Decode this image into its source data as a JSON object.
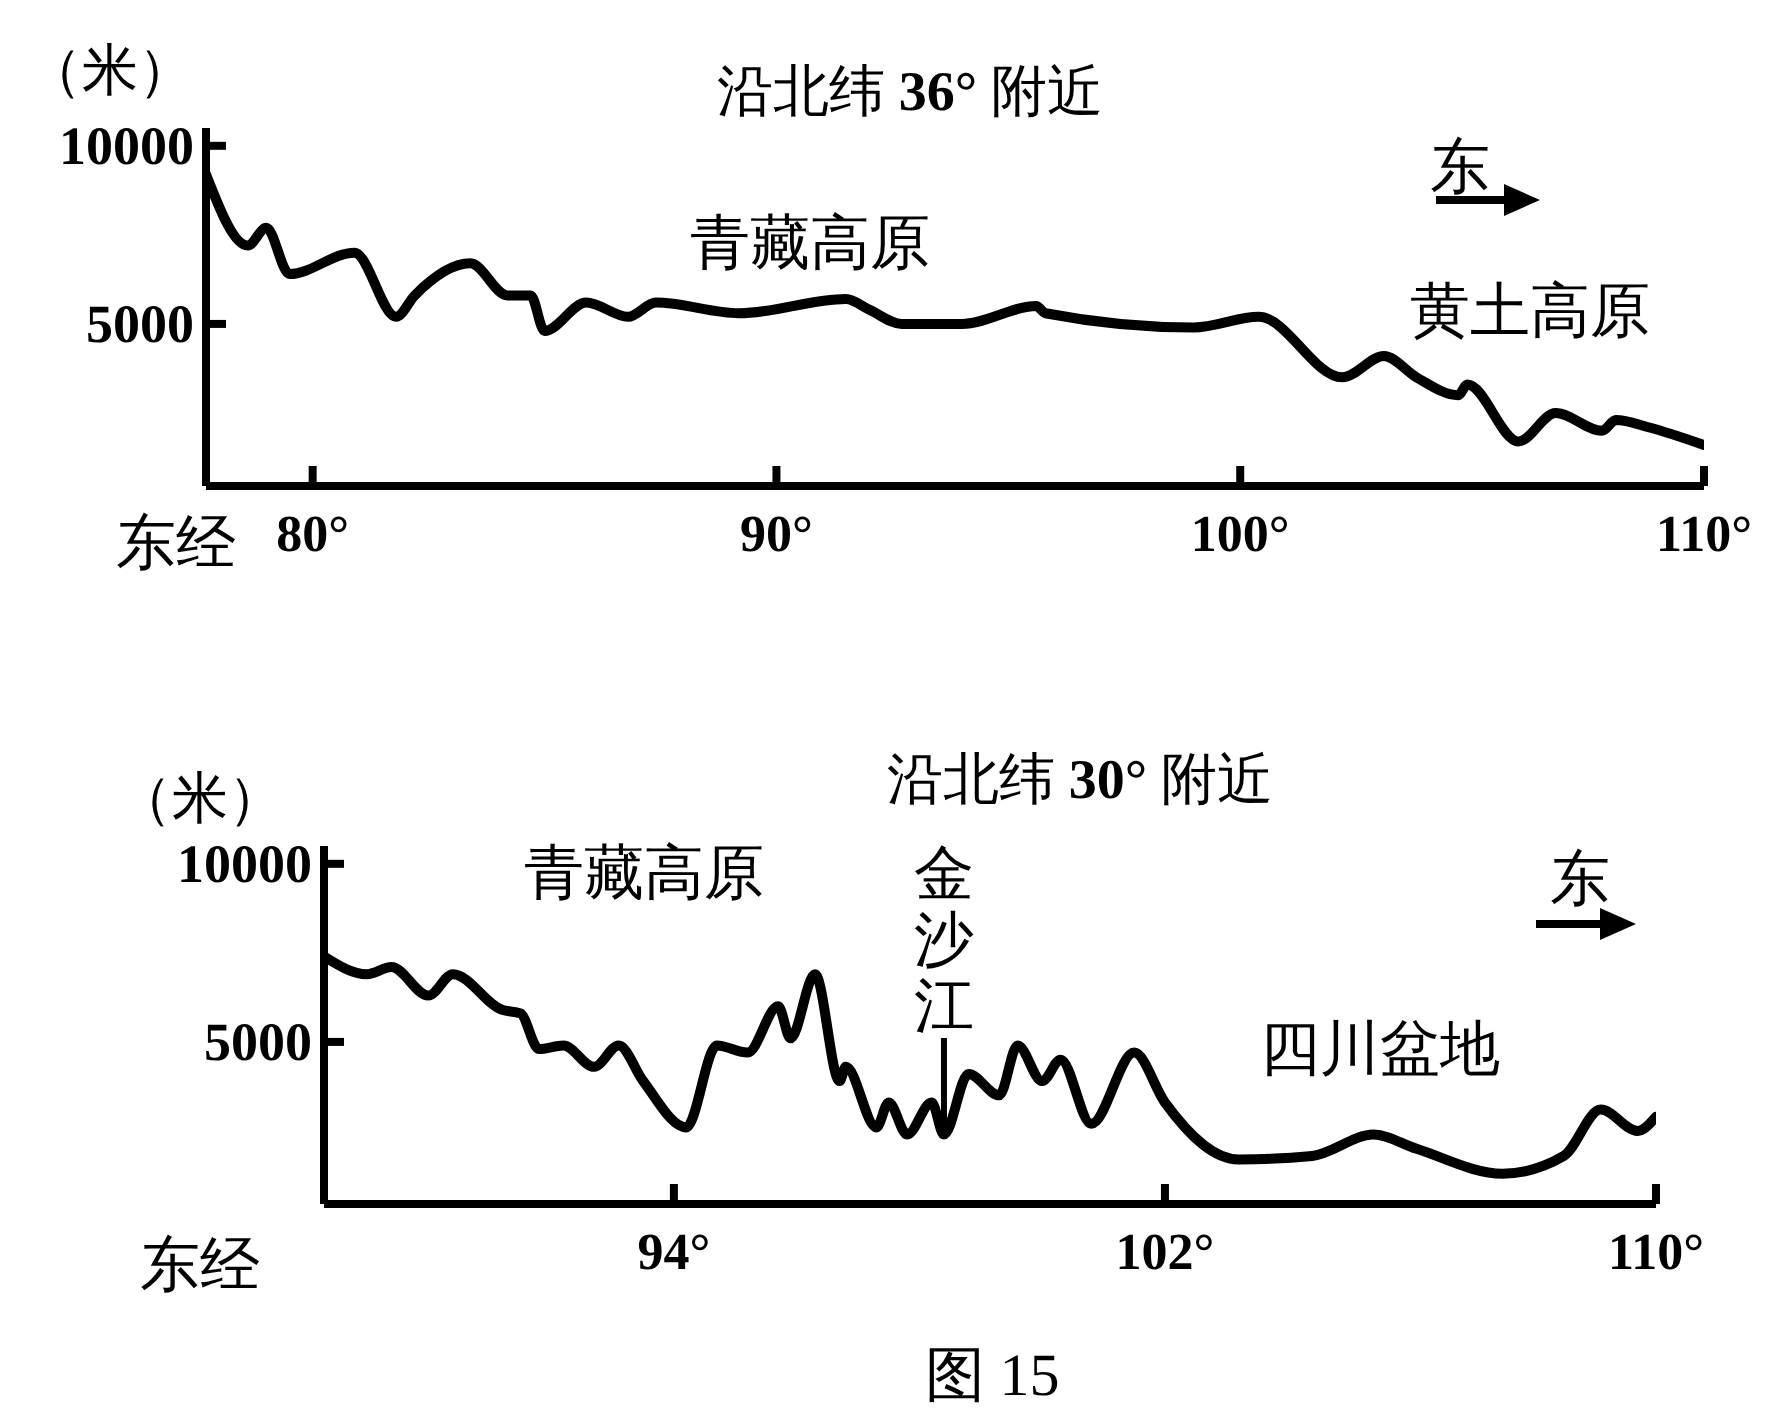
{
  "chart_data": [
    {
      "type": "line",
      "title": "沿北纬 36° 附近",
      "ylabel": "（米）",
      "xlabel": "东经",
      "annotations": [
        "青藏高原",
        "东",
        "黄土高原"
      ],
      "x": [
        77.7,
        78.6,
        79.0,
        79.5,
        80.9,
        81.8,
        82.2,
        83.4,
        84.2,
        84.7,
        85.0,
        85.9,
        86.8,
        87.4,
        89.2,
        91.5,
        92.0,
        92.7,
        94.0,
        95.6,
        95.8,
        99.0,
        100.4,
        102.2,
        103.1,
        103.8,
        104.7,
        104.9,
        106.0,
        106.8,
        107.8,
        108.1,
        108.8,
        110
      ],
      "series": [
        {
          "color": "#000000",
          "values": [
            9200,
            7200,
            7700,
            6400,
            7000,
            5200,
            5800,
            6700,
            5800,
            5800,
            4800,
            5600,
            5200,
            5600,
            5300,
            5700,
            5400,
            5000,
            5000,
            5500,
            5300,
            4900,
            5200,
            3500,
            4100,
            3500,
            3000,
            3300,
            1700,
            2500,
            2000,
            2300,
            2100,
            1600
          ]
        }
      ],
      "xlim": [
        77.7,
        110
      ],
      "xticks": [
        {
          "value": 80,
          "label": "80°"
        },
        {
          "value": 90,
          "label": "90°"
        },
        {
          "value": 100,
          "label": "100°"
        },
        {
          "value": 110,
          "label": "110°"
        }
      ],
      "ylim": [
        450,
        10500
      ],
      "yticks": [
        5000,
        10000
      ],
      "marker": "none",
      "line_style": "solid"
    },
    {
      "type": "line",
      "title": "沿北纬 30° 附近",
      "ylabel": "（米）",
      "xlabel": "东经",
      "annotations": [
        "青藏高原",
        {
          "text": "金沙江",
          "x": 98.4,
          "y": 2400
        },
        "东",
        "四川盆地",
        "图 15"
      ],
      "x": [
        88.3,
        89.0,
        89.4,
        90.0,
        90.4,
        91.2,
        91.5,
        91.8,
        92.2,
        92.7,
        93.1,
        93.5,
        94.2,
        94.7,
        95.2,
        95.7,
        95.9,
        96.3,
        96.7,
        96.8,
        97.3,
        97.5,
        97.8,
        98.2,
        98.4,
        98.8,
        99.3,
        99.6,
        100.0,
        100.3,
        100.8,
        101.5,
        102.0,
        103.2,
        104.4,
        105.4,
        106.1,
        107.5,
        108.5,
        109.1,
        109.7,
        110
      ],
      "series": [
        {
          "color": "#000000",
          "values": [
            7400,
            6900,
            7100,
            6300,
            6900,
            5900,
            5800,
            4800,
            4900,
            4300,
            4900,
            3900,
            2600,
            4900,
            4700,
            6000,
            5100,
            6900,
            3900,
            4300,
            2600,
            3300,
            2400,
            3300,
            2400,
            4100,
            3500,
            4900,
            3900,
            4500,
            2700,
            4700,
            3300,
            1700,
            1800,
            2400,
            2000,
            1300,
            1800,
            3100,
            2500,
            2900
          ]
        }
      ],
      "xlim": [
        88.3,
        110
      ],
      "xticks": [
        {
          "value": 94,
          "label": "94°"
        },
        {
          "value": 102,
          "label": "102°"
        },
        {
          "value": 110,
          "label": "110°"
        }
      ],
      "ylim": [
        450,
        10500
      ],
      "yticks": [
        {
          "value": 5000,
          "label": "5000"
        },
        {
          "value": 10000,
          "label": "10000"
        }
      ],
      "marker": "none",
      "line_style": "solid"
    }
  ]
}
